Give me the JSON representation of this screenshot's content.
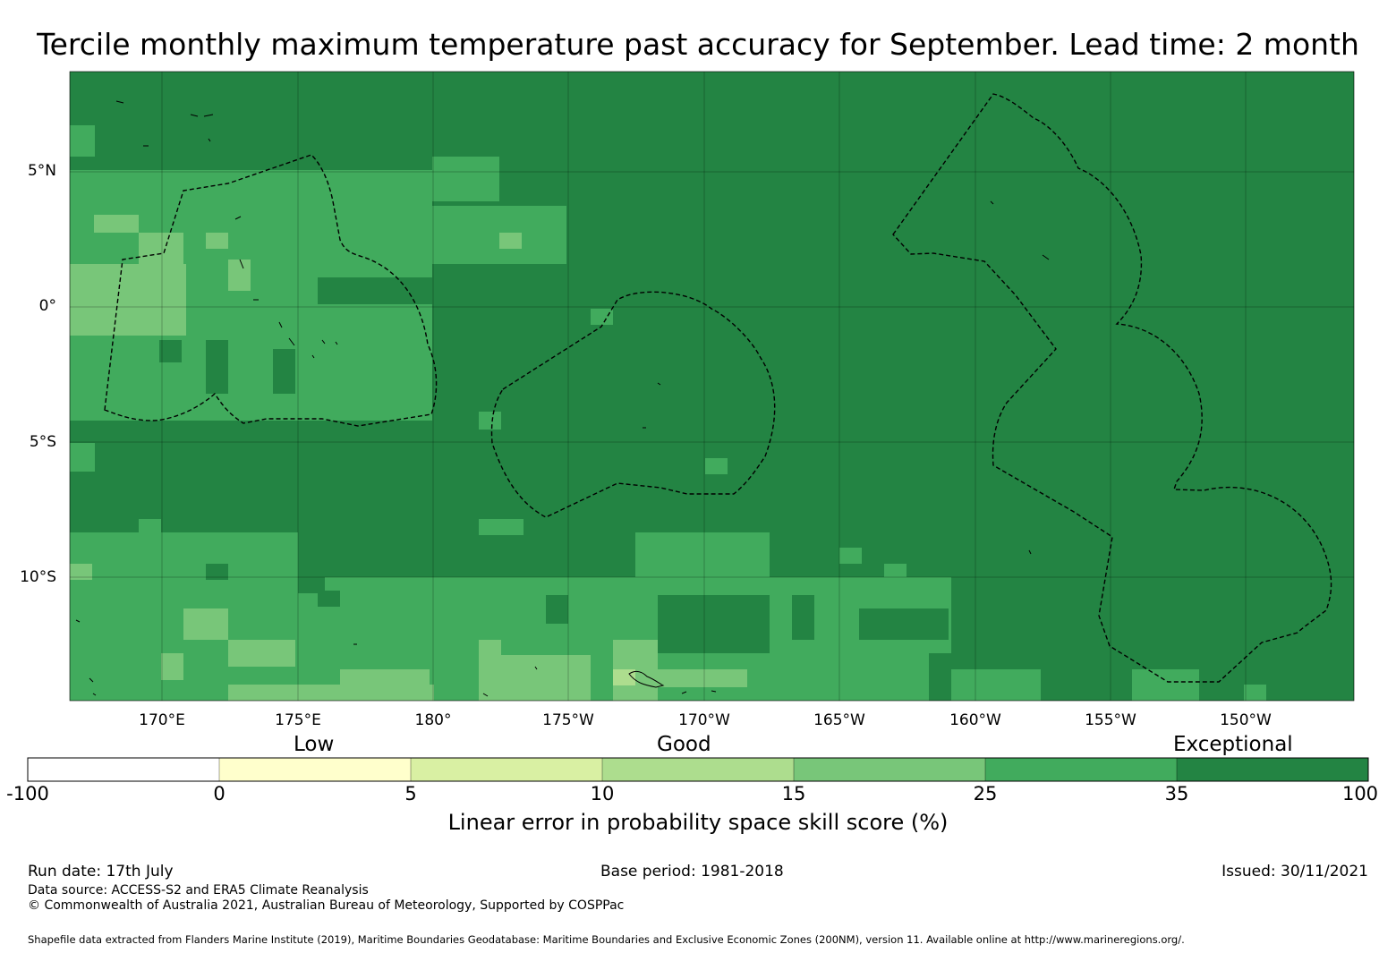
{
  "title": "Tercile monthly maximum temperature past accuracy for September. Lead time: 2 month",
  "lat_labels": [
    "5°N",
    "0°",
    "5°S",
    "10°S"
  ],
  "lon_labels": [
    "170°E",
    "175°E",
    "180°",
    "175°W",
    "170°W",
    "165°W",
    "160°W",
    "155°W",
    "150°W"
  ],
  "legend": {
    "categories": [
      "Low",
      "Good",
      "Exceptional"
    ],
    "ticks": [
      "-100",
      "0",
      "5",
      "10",
      "15",
      "25",
      "35",
      "100"
    ],
    "colors": [
      "#ffffff",
      "#ffffcc",
      "#d9f0a3",
      "#addd8e",
      "#78c679",
      "#41ab5d",
      "#238443"
    ],
    "title": "Linear error in probability space skill score (%)"
  },
  "footer": {
    "run_date": "Run date: 17th July",
    "base_period": "Base period: 1981-2018",
    "issued": "Issued: 30/11/2021",
    "data_source": "Data source: ACCESS-S2 and ERA5 Climate Reanalysis",
    "copyright": "© Commonwealth of Australia 2021, Australian Bureau of Meteorology, Supported by COSPPac",
    "shapefile": "Shapefile data extracted from Flanders Marine Institute (2019), Maritime Boundaries Geodatabase: Maritime Boundaries and Exclusive Economic Zones (200NM), version 11. Available online at http://www.marineregions.org/."
  }
}
